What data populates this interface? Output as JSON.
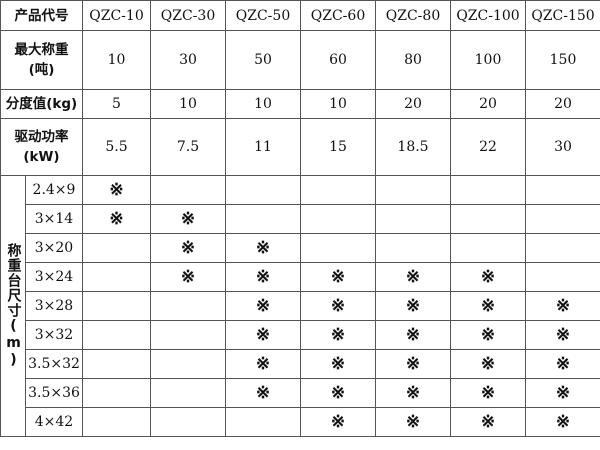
{
  "header": {
    "label": "产品代号",
    "models": [
      "QZC-10",
      "QZC-30",
      "QZC-50",
      "QZC-60",
      "QZC-80",
      "QZC-100",
      "QZC-150"
    ]
  },
  "specs": [
    {
      "label": "最大称重",
      "unit": "(吨)",
      "values": [
        "10",
        "30",
        "50",
        "60",
        "80",
        "100",
        "150"
      ]
    },
    {
      "label": "分度值(kg)",
      "unit": "",
      "values": [
        "5",
        "10",
        "10",
        "10",
        "20",
        "20",
        "20"
      ]
    },
    {
      "label": "驱动功率",
      "unit": "(kW)",
      "values": [
        "5.5",
        "7.5",
        "11",
        "15",
        "18.5",
        "22",
        "30"
      ]
    }
  ],
  "sizes": {
    "label": "称重台尺寸(m)",
    "mark_symbol": "※",
    "rows": [
      {
        "size": "2.4×9",
        "marks": [
          1,
          0,
          0,
          0,
          0,
          0,
          0
        ]
      },
      {
        "size": "3×14",
        "marks": [
          1,
          1,
          0,
          0,
          0,
          0,
          0
        ]
      },
      {
        "size": "3×20",
        "marks": [
          0,
          1,
          1,
          0,
          0,
          0,
          0
        ]
      },
      {
        "size": "3×24",
        "marks": [
          0,
          1,
          1,
          1,
          1,
          1,
          0
        ]
      },
      {
        "size": "3×28",
        "marks": [
          0,
          0,
          1,
          1,
          1,
          1,
          1
        ]
      },
      {
        "size": "3×32",
        "marks": [
          0,
          0,
          1,
          1,
          1,
          1,
          1
        ]
      },
      {
        "size": "3.5×32",
        "marks": [
          0,
          0,
          1,
          1,
          1,
          1,
          1
        ]
      },
      {
        "size": "3.5×36",
        "marks": [
          0,
          0,
          1,
          1,
          1,
          1,
          1
        ]
      },
      {
        "size": "4×42",
        "marks": [
          0,
          0,
          0,
          1,
          1,
          1,
          1
        ]
      }
    ]
  }
}
